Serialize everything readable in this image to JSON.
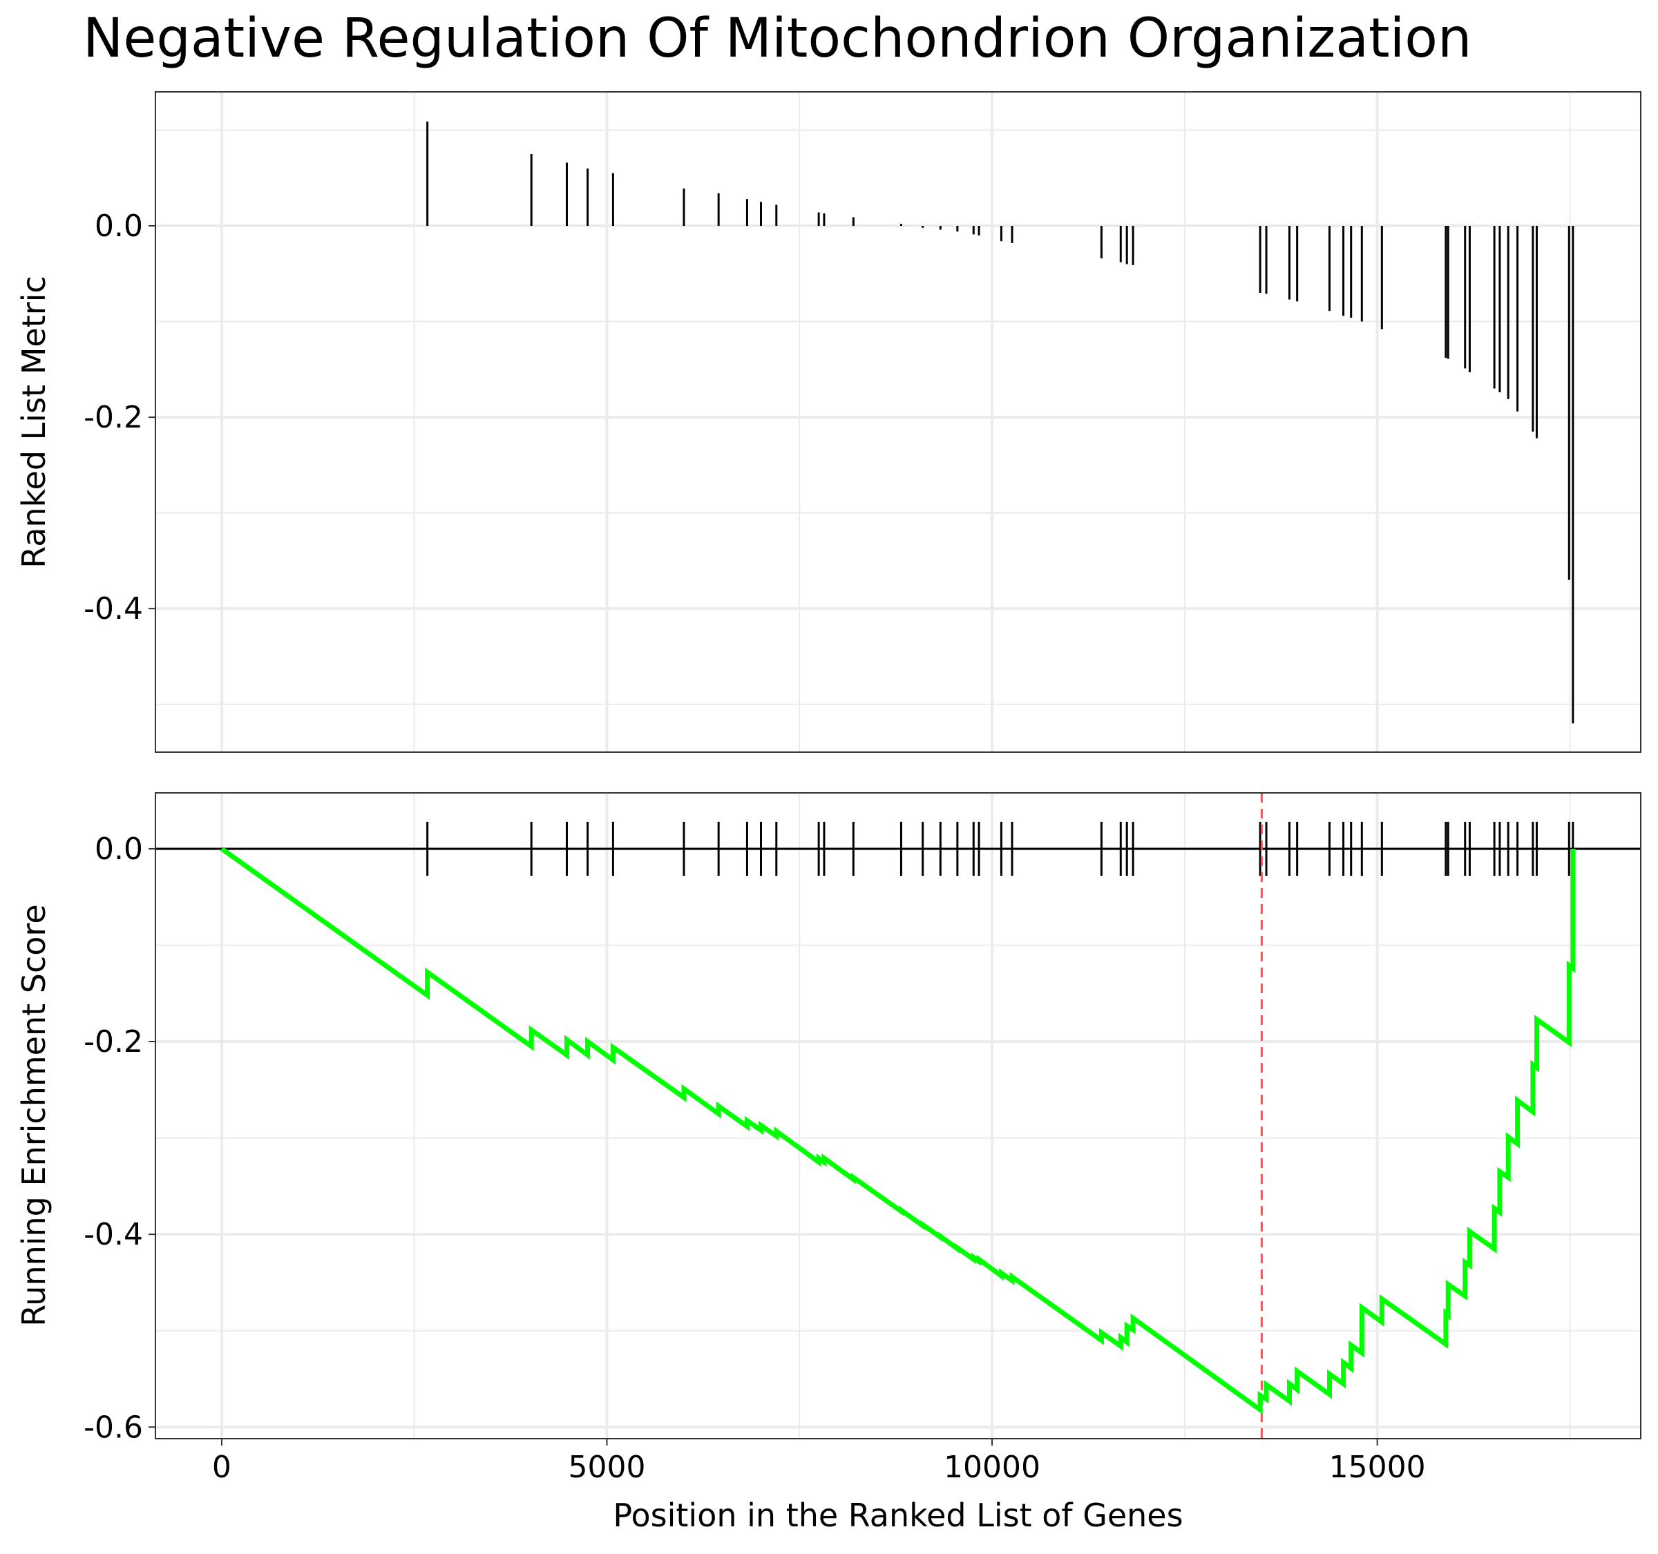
{
  "chart_data": {
    "type": "line",
    "title": "Negative Regulation Of Mitochondrion Organization",
    "xlabel": "Position in the Ranked List of Genes",
    "xlim": [
      -860,
      18420
    ],
    "x_ticks": [
      0,
      5000,
      10000,
      15000
    ],
    "x_tick_labels": [
      "0",
      "5000",
      "10000",
      "15000"
    ],
    "grid": true,
    "legend": "none",
    "colors": {
      "running_es": "#00ff00",
      "max_es_marker": "#ff4d4d",
      "bars": "#000000",
      "grid": "#ebebeb",
      "border": "#333333"
    },
    "top_panel": {
      "ylabel": "Ranked List Metric",
      "ylim": [
        -0.55,
        0.14
      ],
      "y_ticks": [
        0.0,
        -0.2,
        -0.4
      ],
      "y_tick_labels": [
        "0.0",
        "-0.2",
        "-0.4"
      ],
      "bars": [
        {
          "x": 2670,
          "y": 0.109
        },
        {
          "x": 4020,
          "y": 0.075
        },
        {
          "x": 4480,
          "y": 0.066
        },
        {
          "x": 4750,
          "y": 0.06
        },
        {
          "x": 5080,
          "y": 0.055
        },
        {
          "x": 6000,
          "y": 0.039
        },
        {
          "x": 6450,
          "y": 0.034
        },
        {
          "x": 6820,
          "y": 0.028
        },
        {
          "x": 7000,
          "y": 0.025
        },
        {
          "x": 7200,
          "y": 0.022
        },
        {
          "x": 7750,
          "y": 0.014
        },
        {
          "x": 7820,
          "y": 0.013
        },
        {
          "x": 8200,
          "y": 0.009
        },
        {
          "x": 8820,
          "y": 0.002
        },
        {
          "x": 9100,
          "y": -0.002
        },
        {
          "x": 9330,
          "y": -0.004
        },
        {
          "x": 9550,
          "y": -0.006
        },
        {
          "x": 9760,
          "y": -0.009
        },
        {
          "x": 9830,
          "y": -0.01
        },
        {
          "x": 10120,
          "y": -0.016
        },
        {
          "x": 10260,
          "y": -0.018
        },
        {
          "x": 11420,
          "y": -0.034
        },
        {
          "x": 11670,
          "y": -0.038
        },
        {
          "x": 11750,
          "y": -0.04
        },
        {
          "x": 11830,
          "y": -0.041
        },
        {
          "x": 13480,
          "y": -0.07
        },
        {
          "x": 13560,
          "y": -0.071
        },
        {
          "x": 13860,
          "y": -0.077
        },
        {
          "x": 13960,
          "y": -0.079
        },
        {
          "x": 14380,
          "y": -0.089
        },
        {
          "x": 14560,
          "y": -0.094
        },
        {
          "x": 14660,
          "y": -0.096
        },
        {
          "x": 14800,
          "y": -0.1
        },
        {
          "x": 15060,
          "y": -0.108
        },
        {
          "x": 15890,
          "y": -0.138
        },
        {
          "x": 15920,
          "y": -0.139
        },
        {
          "x": 16140,
          "y": -0.149
        },
        {
          "x": 16200,
          "y": -0.153
        },
        {
          "x": 16520,
          "y": -0.17
        },
        {
          "x": 16590,
          "y": -0.174
        },
        {
          "x": 16700,
          "y": -0.181
        },
        {
          "x": 16820,
          "y": -0.194
        },
        {
          "x": 17020,
          "y": -0.215
        },
        {
          "x": 17070,
          "y": -0.222
        },
        {
          "x": 17490,
          "y": -0.37
        },
        {
          "x": 17540,
          "y": -0.52
        }
      ]
    },
    "bottom_panel": {
      "ylabel": "Running Enrichment Score",
      "ylim": [
        -0.612,
        0.058
      ],
      "y_ticks": [
        0.0,
        -0.2,
        -0.4,
        -0.6
      ],
      "y_tick_labels": [
        "0.0",
        "-0.2",
        "-0.4",
        "-0.6"
      ],
      "max_es_position": 13500,
      "hits": [
        2670,
        4020,
        4480,
        4750,
        5080,
        6000,
        6450,
        6820,
        7000,
        7200,
        7750,
        7820,
        8200,
        8820,
        9100,
        9330,
        9550,
        9760,
        9830,
        10120,
        10260,
        11420,
        11670,
        11750,
        11830,
        13480,
        13560,
        13860,
        13960,
        14380,
        14560,
        14660,
        14800,
        15060,
        15890,
        15920,
        16140,
        16200,
        16520,
        16590,
        16700,
        16820,
        17020,
        17070,
        17490,
        17540
      ],
      "running_es": [
        [
          0,
          0.0
        ],
        [
          2670,
          -0.152
        ],
        [
          2670,
          -0.128
        ],
        [
          4020,
          -0.205
        ],
        [
          4020,
          -0.188
        ],
        [
          4480,
          -0.214
        ],
        [
          4480,
          -0.198
        ],
        [
          4750,
          -0.214
        ],
        [
          4750,
          -0.2
        ],
        [
          5080,
          -0.219
        ],
        [
          5080,
          -0.206
        ],
        [
          6000,
          -0.258
        ],
        [
          6000,
          -0.249
        ],
        [
          6450,
          -0.275
        ],
        [
          6450,
          -0.267
        ],
        [
          6820,
          -0.288
        ],
        [
          6820,
          -0.282
        ],
        [
          7000,
          -0.292
        ],
        [
          7000,
          -0.287
        ],
        [
          7200,
          -0.298
        ],
        [
          7200,
          -0.293
        ],
        [
          7750,
          -0.325
        ],
        [
          7750,
          -0.321
        ],
        [
          7820,
          -0.325
        ],
        [
          7820,
          -0.321
        ],
        [
          8200,
          -0.343
        ],
        [
          8200,
          -0.341
        ],
        [
          8820,
          -0.376
        ],
        [
          8820,
          -0.375
        ],
        [
          9100,
          -0.391
        ],
        [
          9100,
          -0.39
        ],
        [
          9330,
          -0.403
        ],
        [
          9330,
          -0.402
        ],
        [
          9550,
          -0.415
        ],
        [
          9550,
          -0.414
        ],
        [
          9760,
          -0.426
        ],
        [
          9760,
          -0.424
        ],
        [
          9830,
          -0.428
        ],
        [
          9830,
          -0.426
        ],
        [
          10120,
          -0.443
        ],
        [
          10120,
          -0.44
        ],
        [
          10260,
          -0.448
        ],
        [
          10260,
          -0.444
        ],
        [
          11420,
          -0.51
        ],
        [
          11420,
          -0.502
        ],
        [
          11670,
          -0.516
        ],
        [
          11670,
          -0.507
        ],
        [
          11750,
          -0.512
        ],
        [
          11750,
          -0.495
        ],
        [
          11830,
          -0.499
        ],
        [
          11830,
          -0.487
        ],
        [
          13480,
          -0.582
        ],
        [
          13480,
          -0.567
        ],
        [
          13560,
          -0.571
        ],
        [
          13560,
          -0.556
        ],
        [
          13860,
          -0.573
        ],
        [
          13860,
          -0.555
        ],
        [
          13960,
          -0.561
        ],
        [
          13960,
          -0.542
        ],
        [
          14380,
          -0.566
        ],
        [
          14380,
          -0.545
        ],
        [
          14560,
          -0.555
        ],
        [
          14560,
          -0.533
        ],
        [
          14660,
          -0.539
        ],
        [
          14660,
          -0.515
        ],
        [
          14800,
          -0.523
        ],
        [
          14800,
          -0.476
        ],
        [
          15060,
          -0.491
        ],
        [
          15060,
          -0.467
        ],
        [
          15890,
          -0.514
        ],
        [
          15890,
          -0.482
        ],
        [
          15920,
          -0.484
        ],
        [
          15920,
          -0.452
        ],
        [
          16140,
          -0.464
        ],
        [
          16140,
          -0.429
        ],
        [
          16200,
          -0.432
        ],
        [
          16200,
          -0.397
        ],
        [
          16520,
          -0.415
        ],
        [
          16520,
          -0.373
        ],
        [
          16590,
          -0.377
        ],
        [
          16590,
          -0.335
        ],
        [
          16700,
          -0.341
        ],
        [
          16700,
          -0.299
        ],
        [
          16820,
          -0.306
        ],
        [
          16820,
          -0.261
        ],
        [
          17020,
          -0.273
        ],
        [
          17020,
          -0.224
        ],
        [
          17070,
          -0.227
        ],
        [
          17070,
          -0.177
        ],
        [
          17490,
          -0.201
        ],
        [
          17490,
          -0.121
        ],
        [
          17540,
          -0.124
        ],
        [
          17540,
          0.0
        ]
      ]
    }
  }
}
